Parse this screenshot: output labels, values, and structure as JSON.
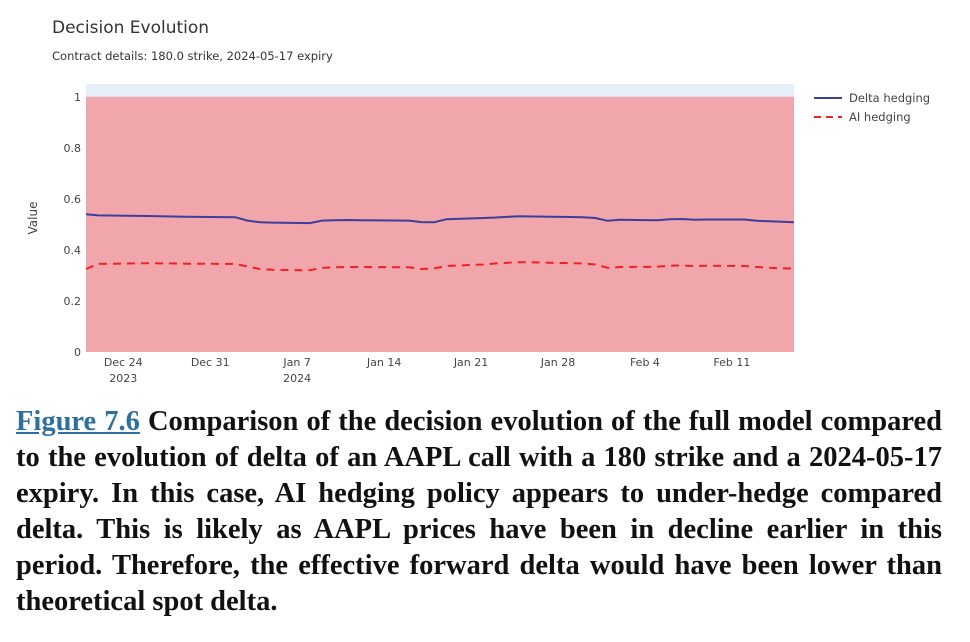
{
  "figure": {
    "label": "Figure 7.6",
    "caption_text": "Comparison of the decision evolution of the full model compared to the evolution of delta of an AAPL call with a 180 strike and a 2024-05-17 expiry. In this case, AI hedging policy appears to under-hedge compared delta. This is likely as AAPL prices have been in decline earlier in this period. Therefore, the effective forward delta would have been lower than theoretical spot delta."
  },
  "colors": {
    "delta_line": "#3b3f9b",
    "ai_line": "#ee2222",
    "band_fill": "#f0a6ab",
    "plot_bg": "#e8eef8",
    "text": "#444444"
  },
  "chart_data": {
    "type": "line",
    "title": "Decision Evolution",
    "subtitle": "Contract details: 180.0 strike, 2024-05-17 expiry",
    "ylabel": "Value",
    "xlabel": "",
    "ylim": [
      0,
      1.05
    ],
    "xlim": [
      "2023-12-21",
      "2024-02-16"
    ],
    "y_ticks": [
      {
        "value": 0,
        "label": "0"
      },
      {
        "value": 0.2,
        "label": "0.2"
      },
      {
        "value": 0.4,
        "label": "0.4"
      },
      {
        "value": 0.6,
        "label": "0.6"
      },
      {
        "value": 0.8,
        "label": "0.8"
      },
      {
        "value": 1,
        "label": "1"
      }
    ],
    "x_ticks": [
      {
        "date": "2023-12-24",
        "label": "Dec 24",
        "sublabel": "2023"
      },
      {
        "date": "2023-12-31",
        "label": "Dec 31",
        "sublabel": ""
      },
      {
        "date": "2024-01-07",
        "label": "Jan 7",
        "sublabel": "2024"
      },
      {
        "date": "2024-01-14",
        "label": "Jan 14",
        "sublabel": ""
      },
      {
        "date": "2024-01-21",
        "label": "Jan 21",
        "sublabel": ""
      },
      {
        "date": "2024-01-28",
        "label": "Jan 28",
        "sublabel": ""
      },
      {
        "date": "2024-02-04",
        "label": "Feb 4",
        "sublabel": ""
      },
      {
        "date": "2024-02-11",
        "label": "Feb 11",
        "sublabel": ""
      }
    ],
    "band": {
      "y0": 0,
      "y1": 1
    },
    "legend_position": "top-right",
    "grid": false,
    "series": [
      {
        "name": "Delta hedging",
        "style": "solid",
        "points": [
          [
            "2023-12-21",
            0.54
          ],
          [
            "2023-12-22",
            0.535
          ],
          [
            "2023-12-26",
            0.533
          ],
          [
            "2023-12-27",
            0.532
          ],
          [
            "2023-12-28",
            0.531
          ],
          [
            "2023-12-29",
            0.53
          ],
          [
            "2024-01-02",
            0.528
          ],
          [
            "2024-01-03",
            0.515
          ],
          [
            "2024-01-04",
            0.508
          ],
          [
            "2024-01-05",
            0.507
          ],
          [
            "2024-01-08",
            0.505
          ],
          [
            "2024-01-09",
            0.515
          ],
          [
            "2024-01-10",
            0.516
          ],
          [
            "2024-01-11",
            0.517
          ],
          [
            "2024-01-12",
            0.516
          ],
          [
            "2024-01-16",
            0.515
          ],
          [
            "2024-01-17",
            0.509
          ],
          [
            "2024-01-18",
            0.508
          ],
          [
            "2024-01-19",
            0.52
          ],
          [
            "2024-01-22",
            0.525
          ],
          [
            "2024-01-23",
            0.527
          ],
          [
            "2024-01-24",
            0.53
          ],
          [
            "2024-01-25",
            0.532
          ],
          [
            "2024-01-26",
            0.531
          ],
          [
            "2024-01-29",
            0.529
          ],
          [
            "2024-01-30",
            0.528
          ],
          [
            "2024-01-31",
            0.525
          ],
          [
            "2024-02-01",
            0.514
          ],
          [
            "2024-02-02",
            0.518
          ],
          [
            "2024-02-05",
            0.516
          ],
          [
            "2024-02-06",
            0.52
          ],
          [
            "2024-02-07",
            0.521
          ],
          [
            "2024-02-08",
            0.518
          ],
          [
            "2024-02-09",
            0.519
          ],
          [
            "2024-02-12",
            0.519
          ],
          [
            "2024-02-13",
            0.514
          ],
          [
            "2024-02-14",
            0.512
          ],
          [
            "2024-02-15",
            0.51
          ],
          [
            "2024-02-16",
            0.508
          ]
        ]
      },
      {
        "name": "AI hedging",
        "style": "dash",
        "points": [
          [
            "2023-12-21",
            0.325
          ],
          [
            "2023-12-22",
            0.345
          ],
          [
            "2023-12-26",
            0.348
          ],
          [
            "2023-12-27",
            0.347
          ],
          [
            "2023-12-28",
            0.347
          ],
          [
            "2023-12-29",
            0.346
          ],
          [
            "2024-01-02",
            0.345
          ],
          [
            "2024-01-03",
            0.335
          ],
          [
            "2024-01-04",
            0.325
          ],
          [
            "2024-01-05",
            0.322
          ],
          [
            "2024-01-08",
            0.32
          ],
          [
            "2024-01-09",
            0.33
          ],
          [
            "2024-01-10",
            0.332
          ],
          [
            "2024-01-11",
            0.333
          ],
          [
            "2024-01-12",
            0.333
          ],
          [
            "2024-01-16",
            0.332
          ],
          [
            "2024-01-17",
            0.325
          ],
          [
            "2024-01-18",
            0.327
          ],
          [
            "2024-01-19",
            0.337
          ],
          [
            "2024-01-22",
            0.343
          ],
          [
            "2024-01-23",
            0.347
          ],
          [
            "2024-01-24",
            0.35
          ],
          [
            "2024-01-25",
            0.352
          ],
          [
            "2024-01-26",
            0.351
          ],
          [
            "2024-01-29",
            0.348
          ],
          [
            "2024-01-30",
            0.347
          ],
          [
            "2024-01-31",
            0.343
          ],
          [
            "2024-02-01",
            0.33
          ],
          [
            "2024-02-02",
            0.333
          ],
          [
            "2024-02-05",
            0.334
          ],
          [
            "2024-02-06",
            0.338
          ],
          [
            "2024-02-07",
            0.339
          ],
          [
            "2024-02-08",
            0.337
          ],
          [
            "2024-02-09",
            0.338
          ],
          [
            "2024-02-12",
            0.337
          ],
          [
            "2024-02-13",
            0.333
          ],
          [
            "2024-02-14",
            0.33
          ],
          [
            "2024-02-15",
            0.328
          ],
          [
            "2024-02-16",
            0.327
          ]
        ]
      }
    ]
  }
}
